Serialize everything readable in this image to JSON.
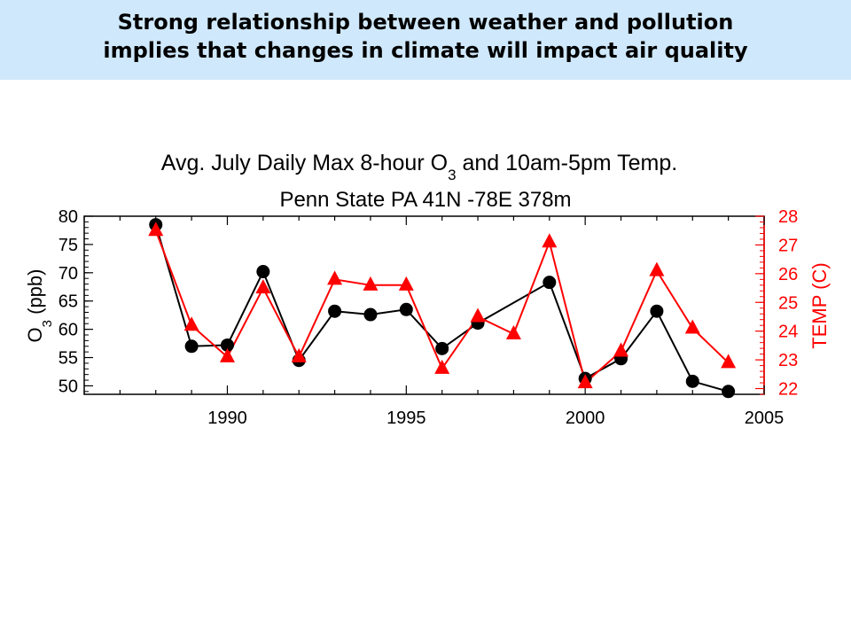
{
  "banner": {
    "line1": "Strong relationship between weather and pollution",
    "line2": "implies that changes in climate will impact air quality"
  },
  "chart_data": {
    "type": "line",
    "title": "Avg. July Daily Max 8-hour O3 and 10am-5pm Temp.",
    "title_parts": {
      "pre": "Avg. July Daily Max 8-hour O",
      "sub": "3",
      "post": " and 10am-5pm Temp."
    },
    "subtitle": "Penn State PA 41N -78E 378m",
    "xlim": [
      1986,
      2005
    ],
    "xticks": [
      1990,
      1995,
      2000,
      2005
    ],
    "ylabel_left": "O3 (ppb)",
    "ylabel_left_parts": {
      "pre": "O",
      "sub": "3",
      "post": " (ppb)"
    },
    "ylim_left": [
      48.5,
      80
    ],
    "yticks_left": [
      50,
      55,
      60,
      65,
      70,
      75,
      80
    ],
    "ylabel_right": "TEMP (C)",
    "ylim_right": [
      21.8,
      28
    ],
    "yticks_right": [
      22,
      23,
      24,
      25,
      26,
      27,
      28
    ],
    "grid": false,
    "series": [
      {
        "axis": "left",
        "color": "#000000",
        "marker": "circle",
        "x": [
          1988,
          1989,
          1990,
          1991,
          1992,
          1993,
          1994,
          1995,
          1996,
          1997,
          1999,
          2000,
          2001,
          2002,
          2003,
          2004
        ],
        "values": [
          78.5,
          57.0,
          57.2,
          70.2,
          54.5,
          63.2,
          62.6,
          63.5,
          56.6,
          61.1,
          68.3,
          51.3,
          54.8,
          63.2,
          50.8,
          49.0
        ]
      },
      {
        "axis": "right",
        "color": "#ff0000",
        "marker": "triangle",
        "x": [
          1988,
          1989,
          1990,
          1991,
          1992,
          1993,
          1994,
          1995,
          1996,
          1997,
          1998,
          1999,
          2000,
          2001,
          2002,
          2003,
          2004
        ],
        "values": [
          27.5,
          24.2,
          23.1,
          25.5,
          23.1,
          25.8,
          25.6,
          25.6,
          22.7,
          24.5,
          23.9,
          27.1,
          22.2,
          23.3,
          26.1,
          24.1,
          22.9
        ]
      }
    ]
  }
}
